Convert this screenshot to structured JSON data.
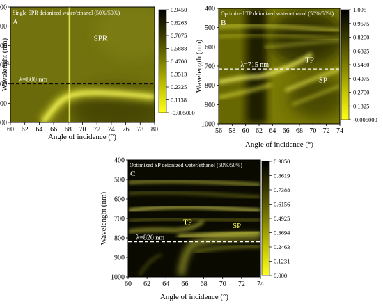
{
  "chart_data": [
    {
      "type": "heatmap",
      "panel": "A",
      "title": "Single SPR deionized water/ethanol (50%/50%)",
      "xlabel": "Angle of incidence (°)",
      "ylabel": "Wavelenght (nm)",
      "xlim": [
        60,
        80
      ],
      "ylim": [
        1000,
        400
      ],
      "x_ticks": [
        "60",
        "62",
        "64",
        "66",
        "68",
        "70",
        "72",
        "74",
        "76",
        "78",
        "80"
      ],
      "y_ticks": [
        "400",
        "500",
        "600",
        "700",
        "800",
        "900",
        "1000"
      ],
      "colorbar": {
        "min": -0.005,
        "max": 0.945,
        "ticks": [
          "0.9450",
          "0.8263",
          "0.7075",
          "0.5888",
          "0.4700",
          "0.3513",
          "0.2325",
          "0.1138",
          "-0.005000"
        ]
      },
      "reference_line": {
        "wavelength": 800,
        "label": "λ=800 nm"
      },
      "annotations": [
        {
          "text": "SPR",
          "x": 72.5,
          "y": 575
        }
      ],
      "features": [
        {
          "name": "SPR dip curve",
          "points": [
            [
              64.5,
              1000
            ],
            [
              65.5,
              950
            ],
            [
              66.5,
              905
            ],
            [
              67.5,
              875
            ],
            [
              68.5,
              858
            ],
            [
              70,
              848
            ],
            [
              72,
              845
            ],
            [
              75,
              850
            ],
            [
              78,
              860
            ],
            [
              80,
              868
            ]
          ]
        },
        {
          "name": "vertical stripe",
          "x": 68.2
        }
      ]
    },
    {
      "type": "heatmap",
      "panel": "B",
      "title": "Optimized TP deionized water/ethanol (50%/50%)",
      "xlabel": "Angle of incidence (°)",
      "ylabel": "Wavelength (nm)",
      "xlim": [
        56,
        74
      ],
      "ylim": [
        1000,
        400
      ],
      "x_ticks": [
        "56",
        "58",
        "60",
        "62",
        "64",
        "66",
        "68",
        "70",
        "72",
        "74"
      ],
      "y_ticks": [
        "400",
        "500",
        "600",
        "700",
        "800",
        "900",
        "1000"
      ],
      "colorbar": {
        "min": -0.005,
        "max": 1.095,
        "ticks": [
          "1.095",
          "0.9575",
          "0.8200",
          "0.6825",
          "0.5450",
          "0.4075",
          "0.2700",
          "0.1325",
          "-0.005000"
        ]
      },
      "reference_line": {
        "wavelength": 715,
        "label": "λ=715 nm"
      },
      "annotations": [
        {
          "text": "TP",
          "x": 69.5,
          "y": 680
        },
        {
          "text": "SP",
          "x": 71.5,
          "y": 785
        }
      ]
    },
    {
      "type": "heatmap",
      "panel": "C",
      "title": "Optimized SP deionized water/ethanol (50%/50%)",
      "xlabel": "Angle of incidence (°)",
      "ylabel": "Wavelenght (nm)",
      "xlim": [
        60,
        74
      ],
      "ylim": [
        1000,
        400
      ],
      "x_ticks": [
        "60",
        "62",
        "64",
        "66",
        "68",
        "70",
        "72",
        "74"
      ],
      "y_ticks": [
        "400",
        "500",
        "600",
        "700",
        "800",
        "900",
        "1000"
      ],
      "colorbar": {
        "min": 0.0,
        "max": 0.985,
        "ticks": [
          "0.9850",
          "0.8619",
          "0.7388",
          "0.6156",
          "0.4925",
          "0.3694",
          "0.2463",
          "0.1231",
          "0.000"
        ]
      },
      "reference_line": {
        "wavelength": 820,
        "label": "λ=820 nm"
      },
      "annotations": [
        {
          "text": "TP",
          "x": 66.3,
          "y": 730
        },
        {
          "text": "SP",
          "x": 71.5,
          "y": 750
        }
      ]
    }
  ]
}
